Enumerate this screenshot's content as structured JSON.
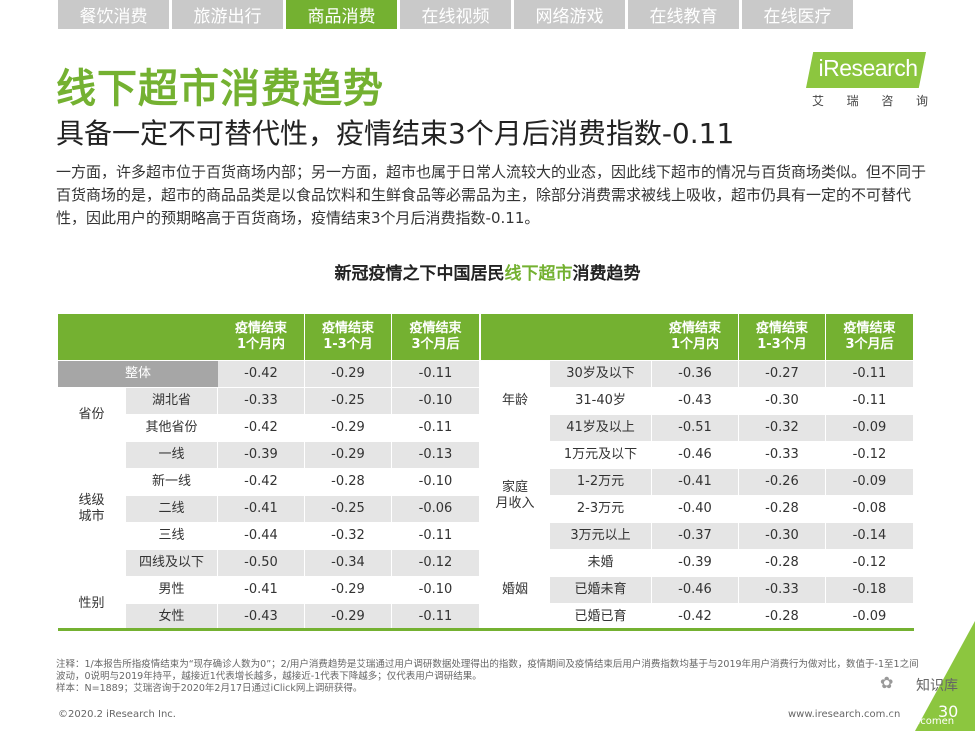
{
  "tabs": [
    {
      "label": "餐饮消费",
      "active": false
    },
    {
      "label": "旅游出行",
      "active": false
    },
    {
      "label": "商品消费",
      "active": true
    },
    {
      "label": "在线视频",
      "active": false
    },
    {
      "label": "网络游戏",
      "active": false
    },
    {
      "label": "在线教育",
      "active": false
    },
    {
      "label": "在线医疗",
      "active": false
    }
  ],
  "logo": {
    "text": "iResearch",
    "chars": [
      "艾",
      "瑞",
      "咨",
      "询"
    ]
  },
  "title": "线下超市消费趋势",
  "subtitle": "具备一定不可替代性，疫情结束3个月后消费指数-0.11",
  "body": "一方面，许多超市位于百货商场内部；另一方面，超市也属于日常人流较大的业态，因此线下超市的情况与百货商场类似。但不同于百货商场的是，超市的商品品类是以食品饮料和生鲜食品等必需品为主，除部分消费需求被线上吸收，超市仍具有一定的不可替代性，因此用户的预期略高于百货商场，疫情结束3个月后消费指数-0.11。",
  "table_title": {
    "prefix": "新冠疫情之下中国居民",
    "highlight": "线下超市",
    "suffix": "消费趋势"
  },
  "columns": [
    "疫情结束\n1个月内",
    "疫情结束\n1-3个月",
    "疫情结束\n3个月后"
  ],
  "left": {
    "overall": {
      "label": "整体",
      "values": [
        "-0.42",
        "-0.29",
        "-0.11"
      ]
    },
    "groups": [
      {
        "name": "省份",
        "rows": [
          {
            "label": "湖北省",
            "values": [
              "-0.33",
              "-0.25",
              "-0.10"
            ]
          },
          {
            "label": "其他省份",
            "values": [
              "-0.42",
              "-0.29",
              "-0.11"
            ]
          }
        ]
      },
      {
        "name": "线级\n城市",
        "rows": [
          {
            "label": "一线",
            "values": [
              "-0.39",
              "-0.29",
              "-0.13"
            ]
          },
          {
            "label": "新一线",
            "values": [
              "-0.42",
              "-0.28",
              "-0.10"
            ]
          },
          {
            "label": "二线",
            "values": [
              "-0.41",
              "-0.25",
              "-0.06"
            ]
          },
          {
            "label": "三线",
            "values": [
              "-0.44",
              "-0.32",
              "-0.11"
            ]
          },
          {
            "label": "四线及以下",
            "values": [
              "-0.50",
              "-0.34",
              "-0.12"
            ]
          }
        ]
      },
      {
        "name": "性别",
        "rows": [
          {
            "label": "男性",
            "values": [
              "-0.41",
              "-0.29",
              "-0.10"
            ]
          },
          {
            "label": "女性",
            "values": [
              "-0.43",
              "-0.29",
              "-0.11"
            ]
          }
        ]
      }
    ]
  },
  "right": {
    "groups": [
      {
        "name": "年龄",
        "rows": [
          {
            "label": "30岁及以下",
            "values": [
              "-0.36",
              "-0.27",
              "-0.11"
            ]
          },
          {
            "label": "31-40岁",
            "values": [
              "-0.43",
              "-0.30",
              "-0.11"
            ]
          },
          {
            "label": "41岁及以上",
            "values": [
              "-0.51",
              "-0.32",
              "-0.09"
            ]
          }
        ]
      },
      {
        "name": "家庭\n月收入",
        "rows": [
          {
            "label": "1万元及以下",
            "values": [
              "-0.46",
              "-0.33",
              "-0.12"
            ]
          },
          {
            "label": "1-2万元",
            "values": [
              "-0.41",
              "-0.26",
              "-0.09"
            ]
          },
          {
            "label": "2-3万元",
            "values": [
              "-0.40",
              "-0.28",
              "-0.08"
            ]
          },
          {
            "label": "3万元以上",
            "values": [
              "-0.37",
              "-0.30",
              "-0.14"
            ]
          }
        ]
      },
      {
        "name": "婚姻",
        "rows": [
          {
            "label": "未婚",
            "values": [
              "-0.39",
              "-0.28",
              "-0.12"
            ]
          },
          {
            "label": "已婚未育",
            "values": [
              "-0.46",
              "-0.33",
              "-0.18"
            ]
          },
          {
            "label": "已婚已育",
            "values": [
              "-0.42",
              "-0.28",
              "-0.09"
            ]
          }
        ]
      }
    ]
  },
  "notes": [
    "注释：1/本报告所指疫情结束为“现存确诊人数为0”；2/用户消费趋势是艾瑞通过用户调研数据处理得出的指数，疫情期间及疫情结束后用户消费指数均基于与2019年用户消费行为做对比，数值于-1至1之间波动，0说明与2019年持平，越接近1代表增长越多，越接近-1代表下降越多；仅代表用户调研结果。",
    "样本：N=1889；艾瑞咨询于2020年2月17日通过iClick网上调研获得。"
  ],
  "copyright": "©2020.2 iResearch Inc.",
  "website": "www.iresearch.com.cn",
  "page_number": "30",
  "watermark": {
    "name": "知识库",
    "sub": "微信号:tsellcomen"
  },
  "colors": {
    "accent": "#74b131",
    "header": "#74b131",
    "row_alt": "#e5e5e5",
    "overall": "#a6a6a6"
  }
}
